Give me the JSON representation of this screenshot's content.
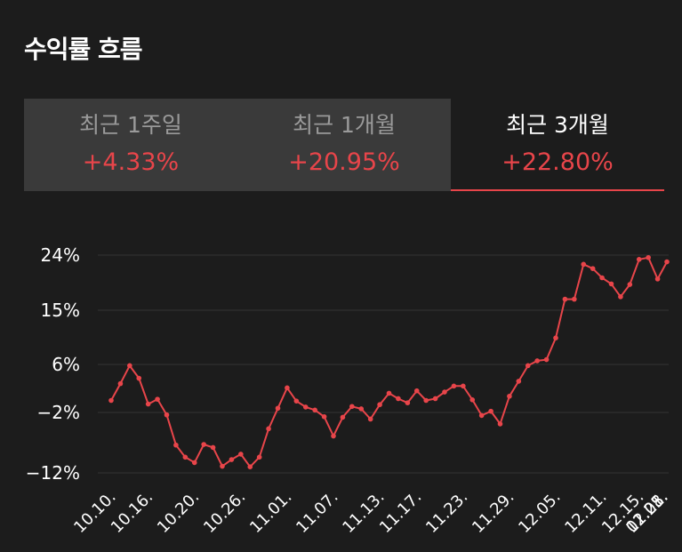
{
  "header": {
    "title": "수익률 흐름"
  },
  "tabs": [
    {
      "label": "최근 1주일",
      "value": "+4.33%",
      "active": false
    },
    {
      "label": "최근 1개월",
      "value": "+20.95%",
      "active": false
    },
    {
      "label": "최근 3개월",
      "value": "+22.80%",
      "active": true
    }
  ],
  "colors": {
    "line": "#e8454a",
    "background": "#1c1c1c",
    "grid": "#333333"
  },
  "chart_data": {
    "type": "line",
    "title": "",
    "xlabel": "",
    "ylabel": "",
    "ylim": [
      -12,
      24
    ],
    "y_ticks": [
      {
        "value": 24,
        "label": "24%"
      },
      {
        "value": 15,
        "label": "15%"
      },
      {
        "value": 6,
        "label": "6%"
      },
      {
        "value": -2,
        "label": "−2%"
      },
      {
        "value": -12,
        "label": "−12%"
      }
    ],
    "x_tick_labels": [
      "10.10.",
      "10.16.",
      "10.20.",
      "10.26.",
      "11.01.",
      "11.07.",
      "11.13.",
      "11.17.",
      "11.23.",
      "11.29.",
      "12.05.",
      "12.11.",
      "12.15.",
      "12.21.",
      "12.28.",
      "01.05."
    ],
    "x_tick_index": [
      0,
      4,
      9,
      14,
      19,
      24,
      29,
      33,
      38,
      43,
      48,
      53,
      57,
      62,
      67,
      72
    ],
    "grid": true,
    "series": [
      {
        "values": [
          0.0,
          2.8,
          5.8,
          3.7,
          -0.6,
          0.2,
          -2.4,
          -7.4,
          -9.4,
          -10.3,
          -7.3,
          -7.8,
          -10.9,
          -9.8,
          -8.9,
          -11.0,
          -9.4,
          -4.7,
          -1.3,
          2.1,
          -0.1,
          -1.1,
          -1.6,
          -2.7,
          -5.9,
          -2.8,
          -1.0,
          -1.4,
          -3.1,
          -0.7,
          1.2,
          0.3,
          -0.4,
          1.6,
          0.0,
          0.3,
          1.4,
          2.4,
          2.4,
          0.1,
          -2.5,
          -1.8,
          -3.9,
          0.7,
          3.2,
          5.8,
          6.6,
          6.8,
          10.4,
          16.8,
          16.8,
          22.5,
          21.8,
          20.3,
          19.3,
          17.2,
          19.2,
          23.3,
          23.6,
          20.1,
          22.9
        ]
      }
    ]
  }
}
